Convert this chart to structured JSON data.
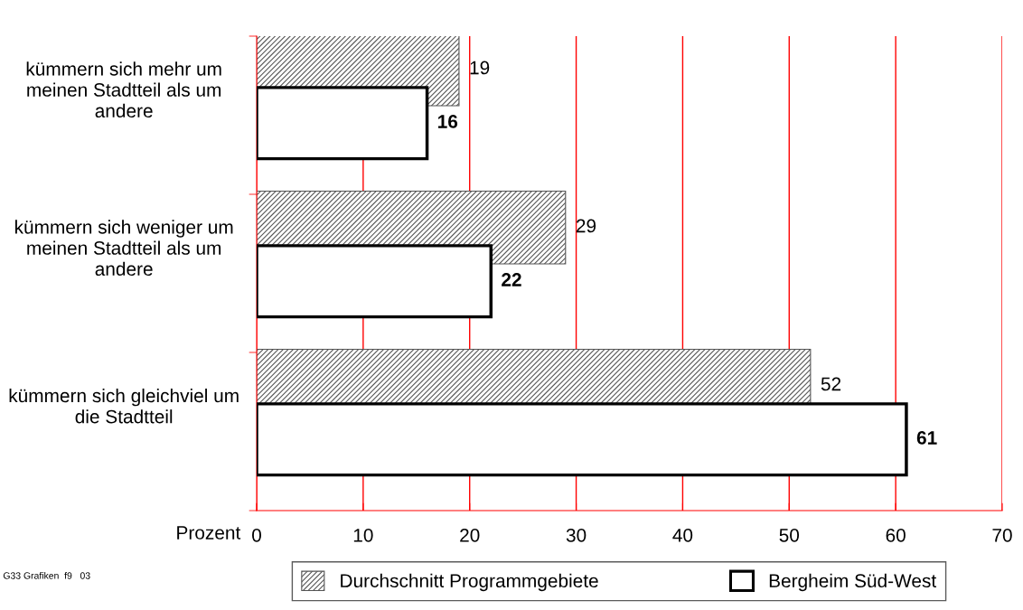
{
  "chart_data": {
    "type": "bar",
    "orientation": "horizontal",
    "categories": [
      "kümmern sich mehr um meinen Stadtteil als um andere",
      "kümmern sich weniger um meinen Stadtteil als um andere",
      "kümmern sich gleichviel um die Stadtteil"
    ],
    "series": [
      {
        "name": "Durchschnitt Programmgebiete",
        "color": "#555555",
        "values": [
          19,
          29,
          52
        ]
      },
      {
        "name": "Bergheim Süd-West",
        "color": "#000000",
        "values": [
          16,
          22,
          61
        ]
      }
    ],
    "xlabel": "Prozent",
    "xlim": [
      0,
      70
    ],
    "xticks": [
      0,
      10,
      20,
      30,
      40,
      50,
      60,
      70
    ],
    "grid": "x",
    "legend": "bottom",
    "data_labels": true,
    "annotations": [
      "G33 Grafiken  f9   03"
    ]
  }
}
